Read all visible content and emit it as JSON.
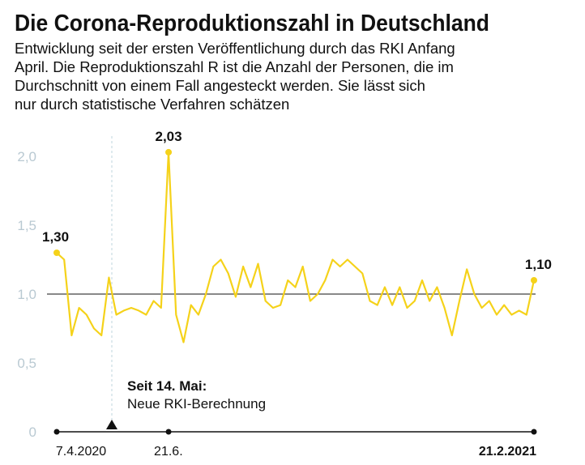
{
  "chart_data": {
    "type": "line",
    "title": "Die Corona-Reproduktionszahl in Deutschland",
    "subtitle": [
      "Entwicklung seit der ersten Veröffentlichung durch das RKI Anfang",
      "April. Die Reproduktionszahl R ist die Anzahl der Personen, die im",
      "Durchschnitt von einem Fall angesteckt werden. Sie lässt sich",
      "nur durch statistische Verfahren schätzen"
    ],
    "annotation": {
      "title": "Seit 14. Mai:",
      "text": "Neue RKI-Berechnung"
    },
    "categories": [
      "7.4.2020",
      null,
      null,
      null,
      null,
      null,
      null,
      null,
      null,
      null,
      null,
      null,
      null,
      null,
      null,
      "21.6.",
      null,
      null,
      null,
      null,
      null,
      null,
      null,
      null,
      null,
      null,
      null,
      null,
      null,
      null,
      null,
      null,
      null,
      null,
      null,
      null,
      null,
      null,
      null,
      null,
      null,
      null,
      null,
      null,
      null,
      null,
      null,
      null,
      null,
      null,
      null,
      null,
      null,
      null,
      null,
      null,
      null,
      null,
      null,
      null,
      null,
      null,
      null,
      null,
      "21.2.2021"
    ],
    "values": [
      1.3,
      1.25,
      0.7,
      0.9,
      0.85,
      0.75,
      0.7,
      1.12,
      0.85,
      0.88,
      0.9,
      0.88,
      0.85,
      0.95,
      0.9,
      2.03,
      0.85,
      0.65,
      0.92,
      0.85,
      1.0,
      1.2,
      1.25,
      1.15,
      0.98,
      1.2,
      1.05,
      1.22,
      0.95,
      0.9,
      0.92,
      1.1,
      1.05,
      1.2,
      0.95,
      1.0,
      1.1,
      1.25,
      1.2,
      1.25,
      1.2,
      1.15,
      0.95,
      0.92,
      1.05,
      0.92,
      1.05,
      0.9,
      0.95,
      1.1,
      0.95,
      1.05,
      0.9,
      0.7,
      0.95,
      1.18,
      1.0,
      0.9,
      0.95,
      0.85,
      0.92,
      0.85,
      0.88,
      0.85,
      1.1
    ],
    "value_labels": [
      "1,30",
      null,
      null,
      null,
      null,
      null,
      null,
      null,
      null,
      null,
      null,
      null,
      null,
      null,
      null,
      "2,03",
      null,
      null,
      null,
      null,
      null,
      null,
      null,
      null,
      null,
      null,
      null,
      null,
      null,
      null,
      null,
      null,
      null,
      null,
      null,
      null,
      null,
      null,
      null,
      null,
      null,
      null,
      null,
      null,
      null,
      null,
      null,
      null,
      null,
      null,
      null,
      null,
      null,
      null,
      null,
      null,
      null,
      null,
      null,
      null,
      null,
      null,
      null,
      null,
      "1,10"
    ],
    "color": "#f5d21a",
    "ylim": [
      0,
      2
    ],
    "yticks": [
      0,
      {
        "value": 0.5,
        "label": "0,5"
      },
      {
        "value": 1,
        "label": "1,0"
      },
      {
        "value": 1.5,
        "label": "1,5"
      },
      {
        "value": 2,
        "label": "2,0"
      }
    ],
    "reference_line": 1
  }
}
